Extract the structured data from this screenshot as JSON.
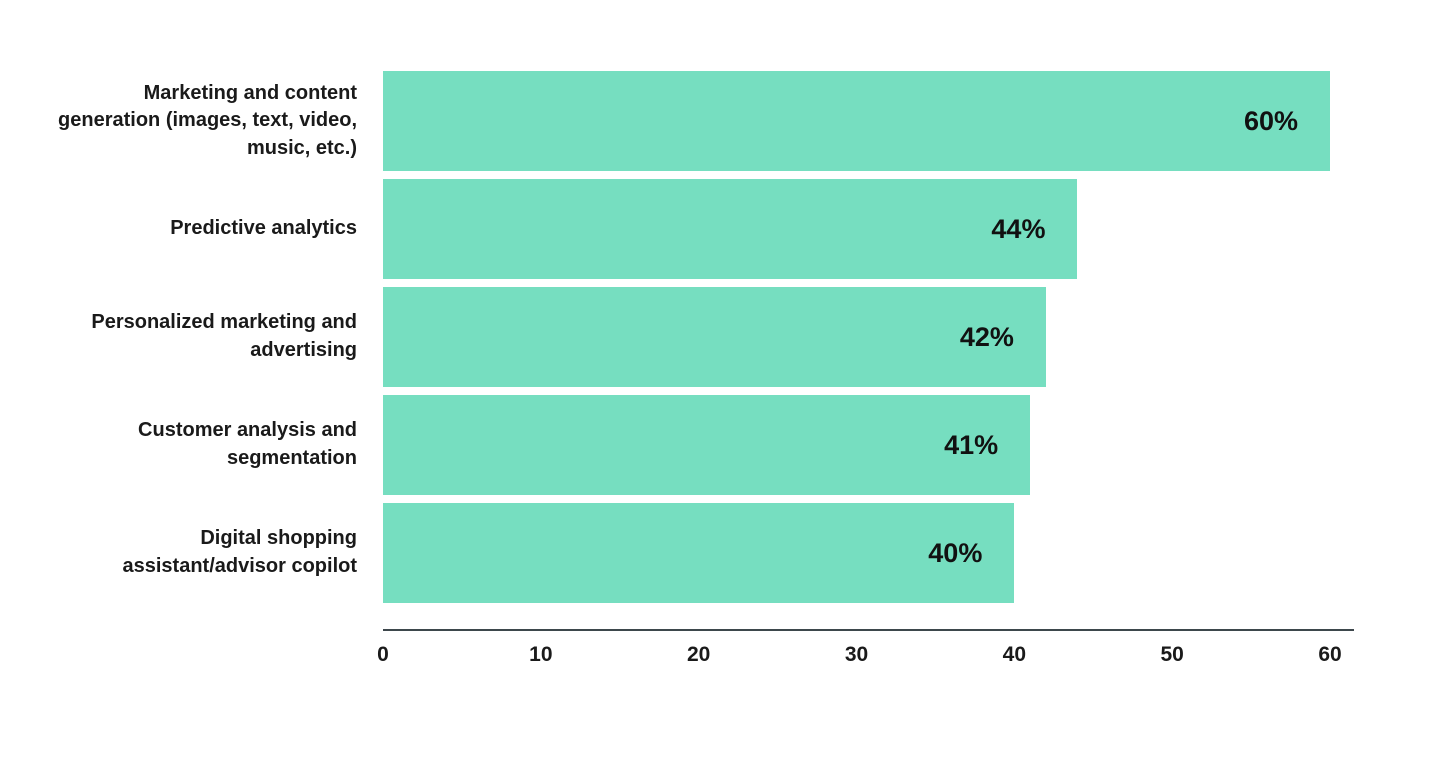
{
  "chart_data": {
    "type": "bar",
    "orientation": "horizontal",
    "categories": [
      "Marketing and content generation (images, text, video, music, etc.)",
      "Predictive analytics",
      "Personalized marketing and advertising",
      "Customer analysis and segmentation",
      "Digital shopping assistant/advisor copilot"
    ],
    "values": [
      60,
      44,
      42,
      41,
      40
    ],
    "value_labels": [
      "60%",
      "44%",
      "42%",
      "41%",
      "40%"
    ],
    "xlim": [
      0,
      60
    ],
    "x_ticks": [
      "0",
      "10",
      "20",
      "30",
      "40",
      "50",
      "60"
    ],
    "grid": false,
    "legend_position": "none",
    "colors": {
      "bar": "#76dec0",
      "axis_line": "#3d474c",
      "text": "#1a1a1a",
      "value_text": "#111111",
      "background": "#ffffff"
    }
  }
}
